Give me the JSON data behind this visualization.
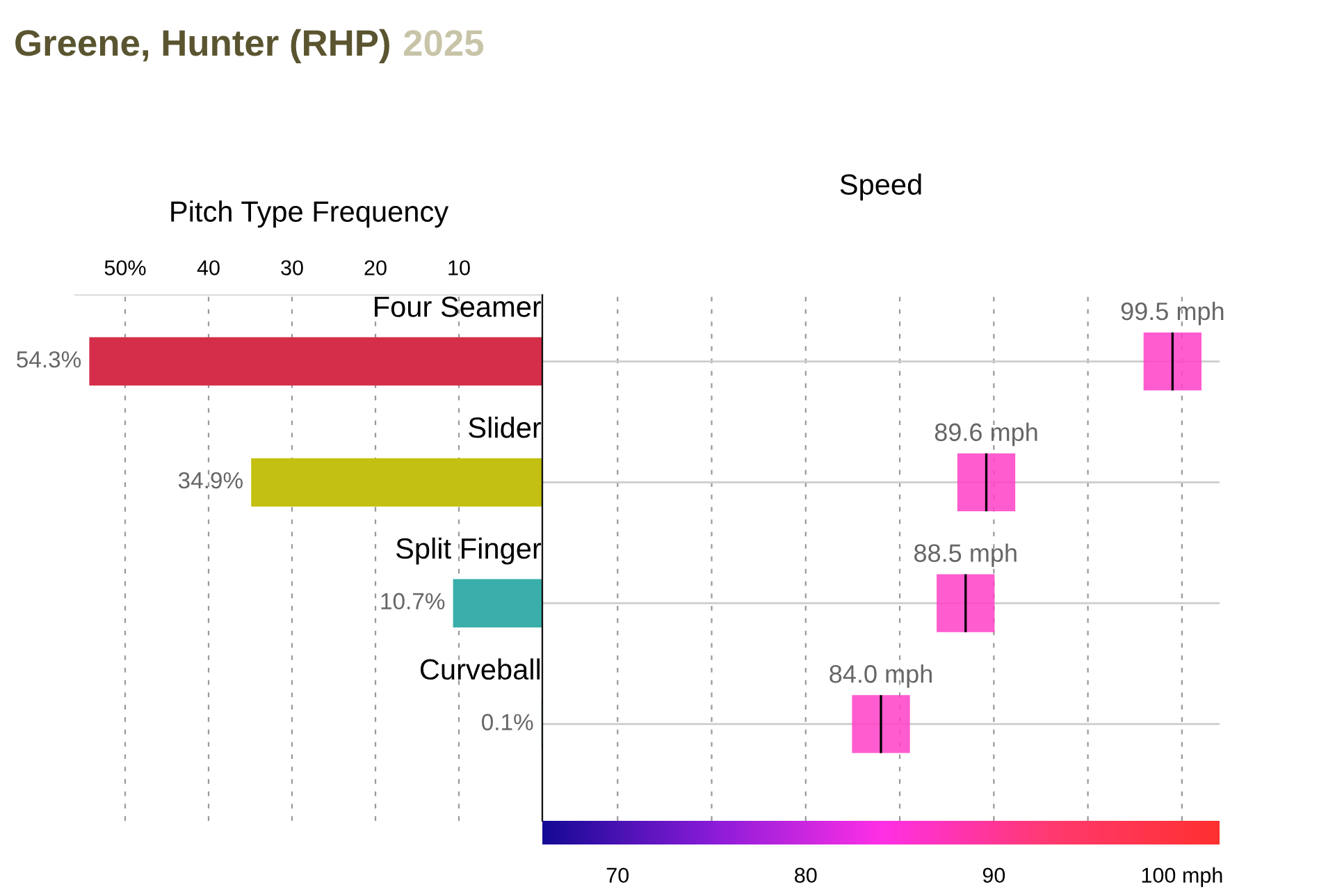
{
  "chart_data": [
    {
      "type": "bar",
      "orientation": "horizontal",
      "title": "Greene, Hunter (RHP)",
      "subtitle": "2025",
      "xlabel": "Pitch Type Frequency",
      "categories": [
        "Four Seamer",
        "Slider",
        "Split Finger",
        "Curveball"
      ],
      "values": [
        54.3,
        34.9,
        10.7,
        0.1
      ],
      "colors": [
        "#d42e4a",
        "#c4c011",
        "#3aaeaa",
        "#3ab0c0"
      ],
      "value_labels": [
        "54.3%",
        "34.9%",
        "10.7%",
        "0.1%"
      ],
      "xlim": [
        56,
        0
      ],
      "xticks": [
        {
          "value": 50,
          "label": "50%"
        },
        40,
        30,
        20,
        10
      ],
      "grid": "x"
    },
    {
      "type": "scatter",
      "orientation": "horizontal",
      "xlabel": "Speed",
      "categories": [
        null,
        null,
        null,
        null
      ],
      "values": [
        99.5,
        89.6,
        88.5,
        84.0
      ],
      "color": "#ff40c8",
      "marker": "square",
      "value_labels": [
        "99.5 mph",
        "89.6 mph",
        "88.5 mph",
        "84.0 mph"
      ],
      "xlim": [
        66,
        102
      ],
      "xticks": [
        70,
        {
          "value": 75,
          "label": null
        },
        80,
        {
          "value": 85,
          "label": null
        },
        90,
        {
          "value": 95,
          "label": null
        },
        {
          "value": 100,
          "label": "100 mph"
        }
      ],
      "grid": true,
      "tick_labels": "x"
    }
  ]
}
